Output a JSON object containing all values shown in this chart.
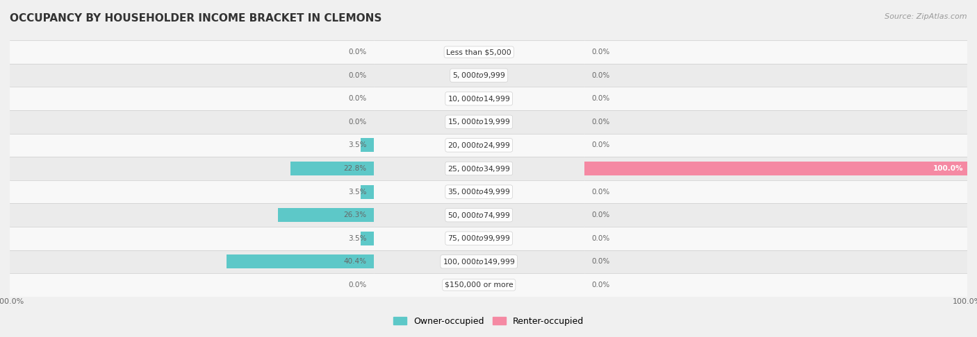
{
  "title": "OCCUPANCY BY HOUSEHOLDER INCOME BRACKET IN CLEMONS",
  "source": "Source: ZipAtlas.com",
  "categories": [
    "Less than $5,000",
    "$5,000 to $9,999",
    "$10,000 to $14,999",
    "$15,000 to $19,999",
    "$20,000 to $24,999",
    "$25,000 to $34,999",
    "$35,000 to $49,999",
    "$50,000 to $74,999",
    "$75,000 to $99,999",
    "$100,000 to $149,999",
    "$150,000 or more"
  ],
  "owner_values": [
    0.0,
    0.0,
    0.0,
    0.0,
    3.5,
    22.8,
    3.5,
    26.3,
    3.5,
    40.4,
    0.0
  ],
  "renter_values": [
    0.0,
    0.0,
    0.0,
    0.0,
    0.0,
    100.0,
    0.0,
    0.0,
    0.0,
    0.0,
    0.0
  ],
  "owner_color": "#5dc8c8",
  "renter_color": "#f589a3",
  "background_color": "#f0f0f0",
  "row_light_color": "#f8f8f8",
  "row_dark_color": "#ebebeb",
  "label_color": "#666666",
  "title_color": "#333333",
  "source_color": "#999999",
  "legend_owner": "Owner-occupied",
  "legend_renter": "Renter-occupied",
  "max_scale": 100.0,
  "bar_height": 0.6,
  "fig_width": 14.06,
  "fig_height": 4.86,
  "dpi": 100
}
